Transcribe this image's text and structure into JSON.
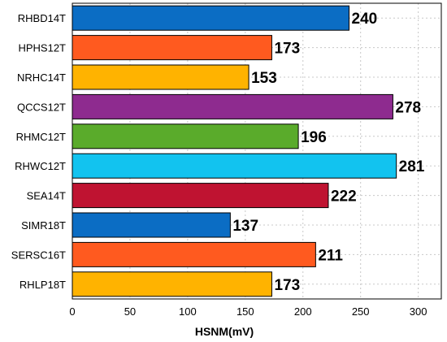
{
  "chart_data": {
    "type": "bar",
    "orientation": "horizontal",
    "title": "",
    "xlabel": "HSNM(mV)",
    "ylabel": "",
    "xlim": [
      0,
      320
    ],
    "xticks": [
      0,
      50,
      100,
      150,
      200,
      250,
      300
    ],
    "grid": true,
    "categories": [
      "RHBD14T",
      "HPHS12T",
      "NRHC14T",
      "QCCS12T",
      "RHMC12T",
      "RHWC12T",
      "SEA14T",
      "SIMR18T",
      "SERSC16T",
      "RHLP18T"
    ],
    "values": [
      240,
      173,
      153,
      278,
      196,
      281,
      222,
      137,
      211,
      173
    ],
    "colors": [
      "#0b6dc4",
      "#ff5a1f",
      "#ffb300",
      "#8e2b8f",
      "#5aab2b",
      "#12c3ef",
      "#bf1331",
      "#0b6dc4",
      "#ff5a1f",
      "#ffb300"
    ]
  }
}
